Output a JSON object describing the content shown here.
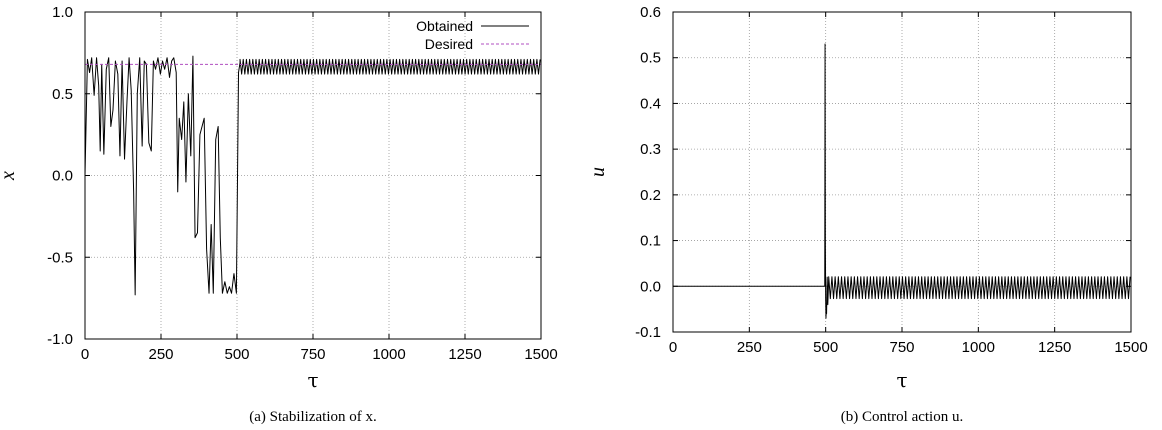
{
  "chart_data": [
    {
      "id": "a",
      "type": "line",
      "xlabel": "τ",
      "ylabel": "x",
      "xlim": [
        0,
        1500
      ],
      "ylim": [
        -1.0,
        1.0
      ],
      "xticks": [
        0,
        250,
        500,
        750,
        1000,
        1250,
        1500
      ],
      "yticks": [
        -1.0,
        -0.5,
        0.0,
        0.5,
        1.0
      ],
      "xtick_labels": [
        "0",
        "250",
        "500",
        "750",
        "1000",
        "1250",
        "1500"
      ],
      "ytick_labels": [
        "-1.0",
        "-0.5",
        "0.0",
        "0.5",
        "1.0"
      ],
      "grid": true,
      "legend_position": "top-right",
      "caption": "(a) Stabilization of x.",
      "series": [
        {
          "name": "Obtained",
          "color": "#000000",
          "style": "solid",
          "x": [
            0,
            8,
            15,
            22,
            30,
            38,
            45,
            50,
            55,
            62,
            70,
            78,
            85,
            92,
            100,
            108,
            115,
            122,
            130,
            138,
            145,
            152,
            160,
            165,
            172,
            180,
            188,
            195,
            202,
            210,
            218,
            225,
            232,
            240,
            248,
            255,
            262,
            270,
            278,
            285,
            292,
            300,
            305,
            310,
            318,
            325,
            332,
            340,
            348,
            355,
            362,
            370,
            378,
            385,
            392,
            400,
            408,
            415,
            422,
            430,
            438,
            445,
            452,
            460,
            468,
            475,
            482,
            490,
            498,
            505,
            510
          ],
          "y": [
            0.0,
            0.71,
            0.63,
            0.72,
            0.49,
            0.72,
            0.55,
            0.15,
            0.68,
            0.13,
            0.65,
            0.72,
            0.3,
            0.4,
            0.7,
            0.62,
            0.12,
            0.7,
            0.1,
            0.45,
            0.72,
            0.52,
            -0.1,
            -0.73,
            0.5,
            0.72,
            0.18,
            0.7,
            0.68,
            0.2,
            0.15,
            0.7,
            0.65,
            0.72,
            0.62,
            0.7,
            0.65,
            0.72,
            0.6,
            0.7,
            0.72,
            0.63,
            -0.1,
            0.35,
            0.22,
            0.45,
            -0.04,
            0.5,
            0.12,
            0.73,
            -0.38,
            -0.35,
            0.25,
            0.3,
            0.35,
            -0.45,
            -0.72,
            -0.3,
            -0.72,
            0.22,
            0.3,
            -0.38,
            -0.72,
            -0.65,
            -0.72,
            -0.68,
            -0.72,
            -0.6,
            -0.72,
            0.63,
            0.69
          ],
          "oscillation": {
            "x_start": 510,
            "x_end": 1500,
            "center": 0.665,
            "amplitude": 0.045,
            "period": 10.5
          }
        },
        {
          "name": "Desired",
          "color": "#b04fc0",
          "style": "dashed",
          "x": [
            0,
            1500
          ],
          "y": [
            0.68,
            0.68
          ]
        }
      ]
    },
    {
      "id": "b",
      "type": "line",
      "xlabel": "τ",
      "ylabel": "u",
      "xlim": [
        0,
        1500
      ],
      "ylim": [
        -0.1,
        0.6
      ],
      "xticks": [
        0,
        250,
        500,
        750,
        1000,
        1250,
        1500
      ],
      "yticks": [
        -0.1,
        0.0,
        0.1,
        0.2,
        0.3,
        0.4,
        0.5,
        0.6
      ],
      "xtick_labels": [
        "0",
        "250",
        "500",
        "750",
        "1000",
        "1250",
        "1500"
      ],
      "ytick_labels": [
        "-0.1",
        "0.0",
        "0.1",
        "0.2",
        "0.3",
        "0.4",
        "0.5",
        "0.6"
      ],
      "grid": true,
      "caption": "(b) Control action u.",
      "series": [
        {
          "color": "#000000",
          "style": "solid",
          "x": [
            0,
            497,
            498,
            499,
            500,
            501,
            502,
            503,
            505,
            507,
            510
          ],
          "y": [
            0.0,
            0.0,
            0.53,
            0.1,
            -0.03,
            -0.07,
            -0.05,
            -0.06,
            0.02,
            -0.04,
            0.02
          ],
          "oscillation": {
            "x_start": 510,
            "x_end": 1500,
            "center": -0.003,
            "amplitude": 0.024,
            "period": 10.5
          }
        }
      ]
    }
  ]
}
